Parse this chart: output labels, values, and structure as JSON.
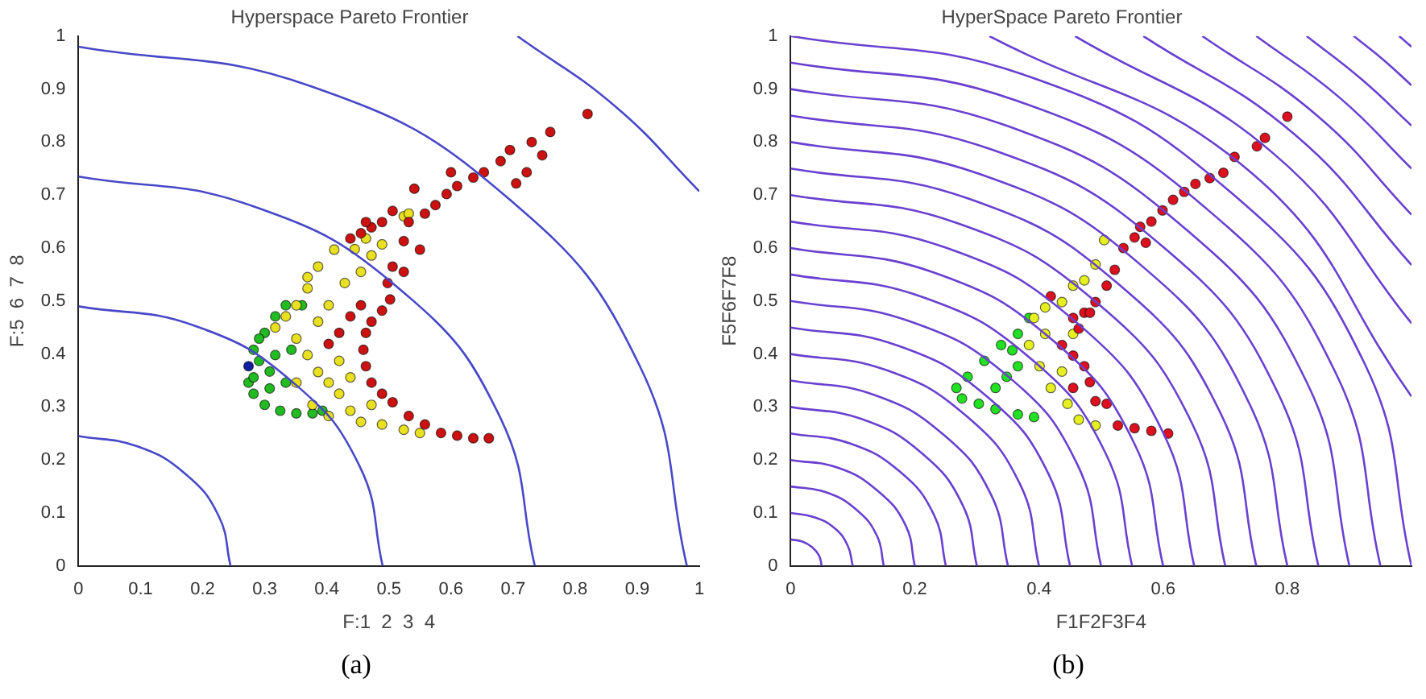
{
  "chart_data": [
    {
      "type": "scatter",
      "title": "Hyperspace Pareto Frontier",
      "xlabel": "F:1  2  3  4",
      "ylabel": "F:5  6  7  8",
      "xlim": [
        0,
        1
      ],
      "ylim": [
        0,
        1
      ],
      "xticks": [
        0,
        0.1,
        0.2,
        0.3,
        0.4,
        0.5,
        0.6,
        0.7,
        0.8,
        0.9,
        1
      ],
      "yticks": [
        0,
        0.1,
        0.2,
        0.3,
        0.4,
        0.5,
        0.6,
        0.7,
        0.8,
        0.9,
        1
      ],
      "grid": false,
      "legend": false,
      "annotations": [
        "(a)"
      ],
      "series": [
        {
          "type": "line",
          "color": "#4848c8",
          "x": [
            0,
            0.094,
            0.173,
            0.226,
            0.245
          ],
          "values": [
            0.245,
            0.226,
            0.173,
            0.094,
            0
          ]
        },
        {
          "type": "line",
          "color": "#4848c8",
          "x": [
            0,
            0.188,
            0.346,
            0.453,
            0.49
          ],
          "values": [
            0.49,
            0.453,
            0.346,
            0.188,
            0
          ]
        },
        {
          "type": "line",
          "color": "#4848c8",
          "x": [
            0,
            0.281,
            0.52,
            0.679,
            0.735
          ],
          "values": [
            0.735,
            0.679,
            0.52,
            0.281,
            0
          ]
        },
        {
          "type": "line",
          "color": "#4848c8",
          "x": [
            0,
            0.375,
            0.693,
            0.905,
            0.98
          ],
          "values": [
            0.98,
            0.905,
            0.693,
            0.375,
            0
          ]
        },
        {
          "type": "line",
          "color": "#4848c8",
          "x": [
            0.707,
            0.866,
            1
          ],
          "values": [
            1,
            0.866,
            0.707
          ]
        },
        {
          "type": "scatter",
          "marker": "circle",
          "color": "#cc1111",
          "x": [
            0.82,
            0.76,
            0.73,
            0.695,
            0.68,
            0.653,
            0.636,
            0.61,
            0.593,
            0.6,
            0.575,
            0.558,
            0.541,
            0.532,
            0.524,
            0.55,
            0.506,
            0.489,
            0.472,
            0.463,
            0.438,
            0.455,
            0.506,
            0.524,
            0.498,
            0.502,
            0.489,
            0.472,
            0.463,
            0.459,
            0.463,
            0.472,
            0.489,
            0.506,
            0.532,
            0.558,
            0.584,
            0.61,
            0.636,
            0.661,
            0.438,
            0.42,
            0.403,
            0.455,
            0.722,
            0.705,
            0.747
          ],
          "values": [
            0.853,
            0.819,
            0.8,
            0.785,
            0.764,
            0.743,
            0.733,
            0.717,
            0.702,
            0.743,
            0.681,
            0.665,
            0.712,
            0.649,
            0.613,
            0.597,
            0.67,
            0.649,
            0.639,
            0.649,
            0.618,
            0.628,
            0.565,
            0.555,
            0.534,
            0.503,
            0.482,
            0.461,
            0.44,
            0.408,
            0.377,
            0.346,
            0.325,
            0.309,
            0.283,
            0.267,
            0.251,
            0.246,
            0.241,
            0.241,
            0.471,
            0.44,
            0.419,
            0.492,
            0.743,
            0.722,
            0.775
          ]
        },
        {
          "type": "scatter",
          "marker": "circle",
          "color": "#e8e020",
          "x": [
            0.369,
            0.386,
            0.412,
            0.445,
            0.463,
            0.489,
            0.524,
            0.532,
            0.351,
            0.334,
            0.317,
            0.351,
            0.369,
            0.386,
            0.403,
            0.42,
            0.403,
            0.429,
            0.455,
            0.472,
            0.386,
            0.42,
            0.438,
            0.455,
            0.489,
            0.524,
            0.55,
            0.438,
            0.351,
            0.377,
            0.403,
            0.472,
            0.369
          ],
          "values": [
            0.545,
            0.565,
            0.597,
            0.598,
            0.618,
            0.607,
            0.66,
            0.665,
            0.492,
            0.471,
            0.45,
            0.429,
            0.398,
            0.366,
            0.346,
            0.387,
            0.492,
            0.534,
            0.555,
            0.586,
            0.461,
            0.325,
            0.293,
            0.272,
            0.267,
            0.257,
            0.251,
            0.356,
            0.346,
            0.304,
            0.283,
            0.304,
            0.524
          ]
        },
        {
          "type": "scatter",
          "marker": "circle",
          "color": "#22bb22",
          "x": [
            0.282,
            0.3,
            0.317,
            0.334,
            0.36,
            0.291,
            0.274,
            0.282,
            0.3,
            0.325,
            0.351,
            0.377,
            0.393,
            0.308,
            0.334,
            0.317,
            0.291,
            0.343,
            0.308,
            0.282
          ],
          "values": [
            0.408,
            0.44,
            0.471,
            0.492,
            0.492,
            0.429,
            0.346,
            0.325,
            0.304,
            0.293,
            0.288,
            0.288,
            0.293,
            0.367,
            0.346,
            0.398,
            0.387,
            0.408,
            0.335,
            0.356
          ]
        },
        {
          "type": "scatter",
          "marker": "circle",
          "color": "#1020a0",
          "x": [
            0.274
          ],
          "values": [
            0.377
          ]
        }
      ]
    },
    {
      "type": "scatter",
      "title": "HyperSpace Pareto Frontier",
      "xlabel": "F1F2F3F4",
      "ylabel": "F5F6F7F8",
      "xlim": [
        0,
        1
      ],
      "ylim": [
        0,
        1
      ],
      "xticks": [
        0,
        0.2,
        0.4,
        0.6,
        0.8
      ],
      "yticks": [
        0,
        0.1,
        0.2,
        0.3,
        0.4,
        0.5,
        0.6,
        0.7,
        0.8,
        0.9,
        1
      ],
      "grid": false,
      "legend": false,
      "annotations": [
        "(b)"
      ],
      "series": [
        {
          "type": "line",
          "color": "#6a40d0",
          "x": [
            0,
            0.019,
            0.035,
            0.046,
            0.05
          ],
          "values": [
            0.05,
            0.046,
            0.035,
            0.019,
            0
          ]
        },
        {
          "type": "line",
          "color": "#6a40d0",
          "x": [
            0,
            0.038,
            0.071,
            0.092,
            0.1
          ],
          "values": [
            0.1,
            0.092,
            0.071,
            0.038,
            0
          ]
        },
        {
          "type": "line",
          "color": "#6a40d0",
          "x": [
            0,
            0.057,
            0.106,
            0.139,
            0.15
          ],
          "values": [
            0.15,
            0.139,
            0.106,
            0.057,
            0
          ]
        },
        {
          "type": "line",
          "color": "#6a40d0",
          "x": [
            0,
            0.077,
            0.141,
            0.185,
            0.2
          ],
          "values": [
            0.2,
            0.185,
            0.141,
            0.077,
            0
          ]
        },
        {
          "type": "line",
          "color": "#6a40d0",
          "x": [
            0,
            0.096,
            0.177,
            0.231,
            0.25
          ],
          "values": [
            0.25,
            0.231,
            0.177,
            0.096,
            0
          ]
        },
        {
          "type": "line",
          "color": "#6a40d0",
          "x": [
            0,
            0.115,
            0.212,
            0.277,
            0.3
          ],
          "values": [
            0.3,
            0.277,
            0.212,
            0.115,
            0
          ]
        },
        {
          "type": "line",
          "color": "#6a40d0",
          "x": [
            0,
            0.134,
            0.247,
            0.323,
            0.35
          ],
          "values": [
            0.35,
            0.323,
            0.247,
            0.134,
            0
          ]
        },
        {
          "type": "line",
          "color": "#6a40d0",
          "x": [
            0,
            0.153,
            0.283,
            0.37,
            0.4
          ],
          "values": [
            0.4,
            0.37,
            0.283,
            0.153,
            0
          ]
        },
        {
          "type": "line",
          "color": "#6a40d0",
          "x": [
            0,
            0.172,
            0.318,
            0.416,
            0.45
          ],
          "values": [
            0.45,
            0.416,
            0.318,
            0.172,
            0
          ]
        },
        {
          "type": "line",
          "color": "#6a40d0",
          "x": [
            0,
            0.191,
            0.354,
            0.462,
            0.5
          ],
          "values": [
            0.5,
            0.462,
            0.354,
            0.191,
            0
          ]
        },
        {
          "type": "line",
          "color": "#6a40d0",
          "x": [
            0,
            0.211,
            0.389,
            0.508,
            0.55
          ],
          "values": [
            0.55,
            0.508,
            0.389,
            0.211,
            0
          ]
        },
        {
          "type": "line",
          "color": "#6a40d0",
          "x": [
            0,
            0.23,
            0.424,
            0.554,
            0.6
          ],
          "values": [
            0.6,
            0.554,
            0.424,
            0.23,
            0
          ]
        },
        {
          "type": "line",
          "color": "#6a40d0",
          "x": [
            0,
            0.249,
            0.46,
            0.601,
            0.65
          ],
          "values": [
            0.65,
            0.601,
            0.46,
            0.249,
            0
          ]
        },
        {
          "type": "line",
          "color": "#6a40d0",
          "x": [
            0,
            0.268,
            0.495,
            0.647,
            0.7
          ],
          "values": [
            0.7,
            0.647,
            0.495,
            0.268,
            0
          ]
        },
        {
          "type": "line",
          "color": "#6a40d0",
          "x": [
            0,
            0.287,
            0.53,
            0.693,
            0.75
          ],
          "values": [
            0.75,
            0.693,
            0.53,
            0.287,
            0
          ]
        },
        {
          "type": "line",
          "color": "#6a40d0",
          "x": [
            0,
            0.306,
            0.566,
            0.739,
            0.8
          ],
          "values": [
            0.8,
            0.739,
            0.566,
            0.306,
            0
          ]
        },
        {
          "type": "line",
          "color": "#6a40d0",
          "x": [
            0,
            0.326,
            0.601,
            0.785,
            0.85
          ],
          "values": [
            0.85,
            0.785,
            0.601,
            0.326,
            0
          ]
        },
        {
          "type": "line",
          "color": "#6a40d0",
          "x": [
            0,
            0.345,
            0.636,
            0.832,
            0.9
          ],
          "values": [
            0.9,
            0.832,
            0.636,
            0.345,
            0
          ]
        },
        {
          "type": "line",
          "color": "#6a40d0",
          "x": [
            0,
            0.364,
            0.672,
            0.878,
            0.95
          ],
          "values": [
            0.95,
            0.878,
            0.672,
            0.364,
            0
          ]
        },
        {
          "type": "line",
          "color": "#6a40d0",
          "x": [
            0,
            0.383,
            0.707,
            0.924,
            1
          ],
          "values": [
            1,
            0.924,
            0.707,
            0.383,
            0
          ]
        },
        {
          "type": "line",
          "color": "#6a40d0",
          "x": [
            0.32,
            0.742,
            1
          ],
          "values": [
            1,
            0.742,
            0.32
          ]
        },
        {
          "type": "line",
          "color": "#6a40d0",
          "x": [
            0.458,
            0.778,
            1
          ],
          "values": [
            1,
            0.778,
            0.458
          ]
        },
        {
          "type": "line",
          "color": "#6a40d0",
          "x": [
            0.568,
            0.813,
            1
          ],
          "values": [
            1,
            0.813,
            0.568
          ]
        },
        {
          "type": "line",
          "color": "#6a40d0",
          "x": [
            0.663,
            0.849,
            1
          ],
          "values": [
            1,
            0.849,
            0.663
          ]
        },
        {
          "type": "line",
          "color": "#6a40d0",
          "x": [
            0.75,
            0.884,
            1
          ],
          "values": [
            1,
            0.884,
            0.75
          ]
        },
        {
          "type": "line",
          "color": "#6a40d0",
          "x": [
            0.831,
            0.919,
            1
          ],
          "values": [
            1,
            0.919,
            0.831
          ]
        },
        {
          "type": "line",
          "color": "#6a40d0",
          "x": [
            0.907,
            0.955,
            1
          ],
          "values": [
            1,
            0.955,
            0.907
          ]
        },
        {
          "type": "line",
          "color": "#6a40d0",
          "x": [
            0.98,
            0.99,
            1
          ],
          "values": [
            1,
            0.99,
            0.98
          ]
        },
        {
          "type": "scatter",
          "marker": "circle",
          "color": "#dd1020",
          "x": [
            0.8,
            0.764,
            0.751,
            0.715,
            0.697,
            0.675,
            0.652,
            0.634,
            0.616,
            0.599,
            0.581,
            0.563,
            0.572,
            0.554,
            0.536,
            0.522,
            0.509,
            0.491,
            0.473,
            0.455,
            0.464,
            0.437,
            0.455,
            0.473,
            0.482,
            0.491,
            0.509,
            0.527,
            0.554,
            0.581,
            0.608,
            0.455,
            0.419,
            0.482
          ],
          "values": [
            0.848,
            0.808,
            0.792,
            0.772,
            0.742,
            0.732,
            0.721,
            0.706,
            0.691,
            0.671,
            0.65,
            0.64,
            0.61,
            0.62,
            0.6,
            0.559,
            0.529,
            0.498,
            0.478,
            0.468,
            0.448,
            0.417,
            0.397,
            0.377,
            0.347,
            0.311,
            0.306,
            0.265,
            0.26,
            0.255,
            0.25,
            0.336,
            0.509,
            0.478
          ]
        },
        {
          "type": "scatter",
          "marker": "circle",
          "color": "#e6f020",
          "x": [
            0.505,
            0.491,
            0.473,
            0.455,
            0.437,
            0.41,
            0.392,
            0.384,
            0.401,
            0.419,
            0.446,
            0.464,
            0.491,
            0.437,
            0.41,
            0.455
          ],
          "values": [
            0.615,
            0.569,
            0.539,
            0.529,
            0.498,
            0.488,
            0.468,
            0.417,
            0.377,
            0.336,
            0.306,
            0.276,
            0.265,
            0.367,
            0.438,
            0.438
          ]
        },
        {
          "type": "scatter",
          "marker": "circle",
          "color": "#22e022",
          "x": [
            0.384,
            0.366,
            0.339,
            0.312,
            0.285,
            0.267,
            0.276,
            0.303,
            0.33,
            0.366,
            0.392,
            0.348,
            0.33,
            0.366,
            0.357
          ],
          "values": [
            0.468,
            0.438,
            0.417,
            0.387,
            0.357,
            0.336,
            0.316,
            0.306,
            0.296,
            0.286,
            0.281,
            0.357,
            0.336,
            0.377,
            0.407
          ]
        }
      ]
    }
  ]
}
